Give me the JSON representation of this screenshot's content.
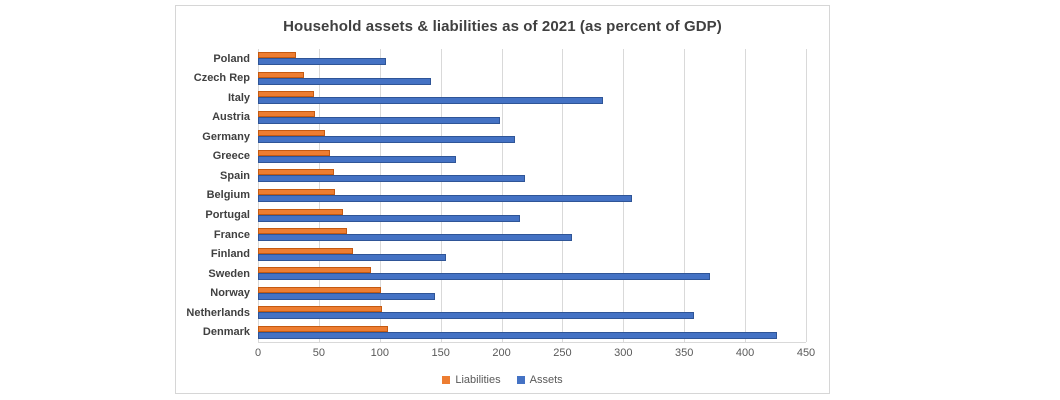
{
  "chart_data": {
    "type": "bar",
    "orientation": "horizontal",
    "title": "Household assets & liabilities as of 2021 (as percent of GDP)",
    "categories": [
      "Poland",
      "Czech Rep",
      "Italy",
      "Austria",
      "Germany",
      "Greece",
      "Spain",
      "Belgium",
      "Portugal",
      "France",
      "Finland",
      "Sweden",
      "Norway",
      "Netherlands",
      "Denmark"
    ],
    "series": [
      {
        "name": "Liabilities",
        "color": "#ED7D31",
        "border_color": "#C55A11",
        "values": [
          31,
          38,
          46,
          47,
          55,
          59,
          62,
          63,
          70,
          73,
          78,
          93,
          101,
          102,
          107
        ]
      },
      {
        "name": "Assets",
        "color": "#4472C4",
        "border_color": "#2F5597",
        "values": [
          105,
          142,
          283,
          199,
          211,
          163,
          219,
          307,
          215,
          258,
          154,
          371,
          145,
          358,
          426
        ]
      }
    ],
    "xlim": [
      0,
      450
    ],
    "x_ticks": [
      0,
      50,
      100,
      150,
      200,
      250,
      300,
      350,
      400,
      450
    ],
    "grid": true,
    "legend_position": "bottom",
    "gridline_color": "#D9D9D9",
    "axis_label_color": "#595959",
    "category_label_color": "#404040",
    "title_color": "#404040"
  }
}
